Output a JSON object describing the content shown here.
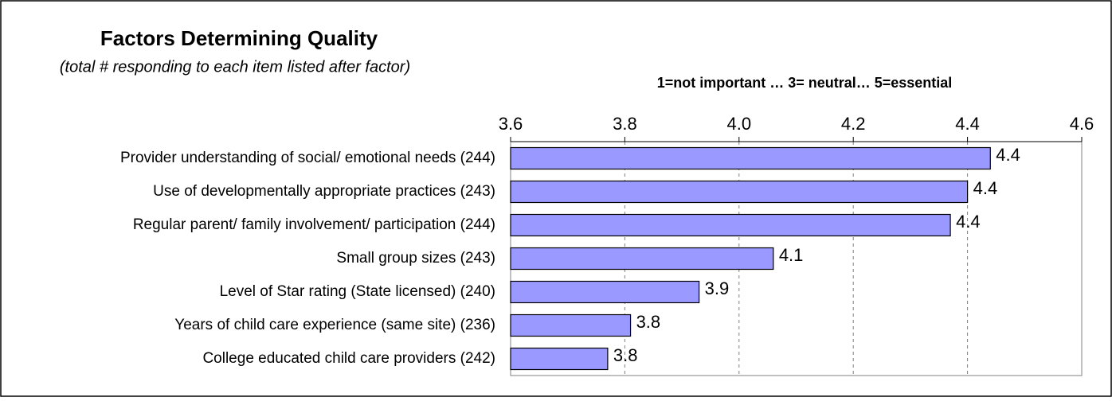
{
  "chart_data": {
    "type": "bar",
    "orientation": "horizontal",
    "title": "Factors Determining Quality",
    "subtitle": "(total # responding to each item listed after factor)",
    "x_axis_label": "1=not important … 3= neutral… 5=essential",
    "categories": [
      "Provider understanding of social/ emotional needs (244)",
      "Use of developmentally appropriate practices (243)",
      "Regular parent/ family involvement/ participation (244)",
      "Small group sizes (243)",
      "Level of Star rating (State licensed) (240)",
      "Years of child care experience (same site) (236)",
      "College educated child care providers (242)"
    ],
    "values": [
      4.44,
      4.4,
      4.37,
      4.06,
      3.93,
      3.81,
      3.77
    ],
    "value_labels": [
      "4.4",
      "4.4",
      "4.4",
      "4.1",
      "3.9",
      "3.8",
      "3.8"
    ],
    "color": "#9999ff",
    "xlim": [
      3.6,
      4.6
    ],
    "xticks": [
      3.6,
      3.8,
      {
        "value": 4,
        "label": "4.0"
      },
      4.2,
      4.4,
      4.6
    ],
    "grid": true
  }
}
